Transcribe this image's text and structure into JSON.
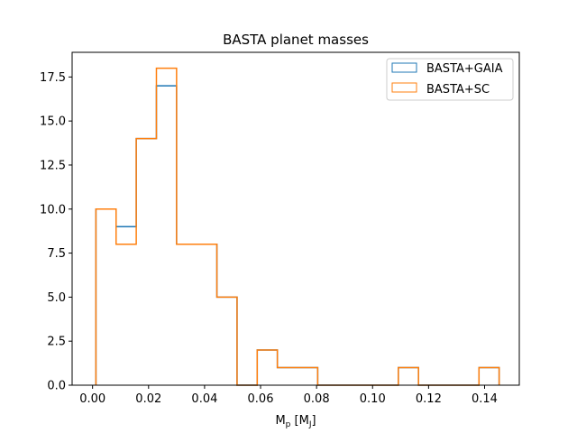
{
  "chart_data": {
    "type": "histogram-step",
    "title": "BASTA planet masses",
    "xlabel": {
      "base": "M",
      "sub": "p",
      "mid": " [M",
      "sub2": "J",
      "end": "]"
    },
    "ylabel": "",
    "xlim": [
      -0.0073,
      0.1524
    ],
    "ylim": [
      0,
      18.9
    ],
    "x_ticks": [
      0.0,
      0.02,
      0.04,
      0.06,
      0.08,
      0.1,
      0.12,
      0.14
    ],
    "x_tick_labels": [
      "0.00",
      "0.02",
      "0.04",
      "0.06",
      "0.08",
      "0.10",
      "0.12",
      "0.14"
    ],
    "y_ticks": [
      0,
      2.5,
      5,
      7.5,
      10,
      12.5,
      15,
      17.5
    ],
    "y_tick_labels": [
      "0.0",
      "2.5",
      "5.0",
      "7.5",
      "10.0",
      "12.5",
      "15.0",
      "17.5"
    ],
    "bin_edges": [
      0.0012,
      0.0084,
      0.0156,
      0.0228,
      0.03,
      0.0372,
      0.0444,
      0.0516,
      0.0588,
      0.066,
      0.0732,
      0.0804,
      0.0876,
      0.0948,
      0.102,
      0.1092,
      0.1164,
      0.1236,
      0.1308,
      0.138,
      0.1452
    ],
    "series": [
      {
        "name": "BASTA+GAIA",
        "color": "#1f77b4",
        "counts": [
          10,
          9,
          14,
          17,
          8,
          8,
          5,
          0,
          2,
          1,
          1,
          0,
          0,
          0,
          0,
          1,
          0,
          0,
          0,
          1
        ]
      },
      {
        "name": "BASTA+SC",
        "color": "#ff7f0e",
        "counts": [
          10,
          8,
          14,
          18,
          8,
          8,
          5,
          0,
          2,
          1,
          1,
          0,
          0,
          0,
          0,
          1,
          0,
          0,
          0,
          1
        ]
      }
    ],
    "legend_position": "top-right",
    "grid": false
  }
}
